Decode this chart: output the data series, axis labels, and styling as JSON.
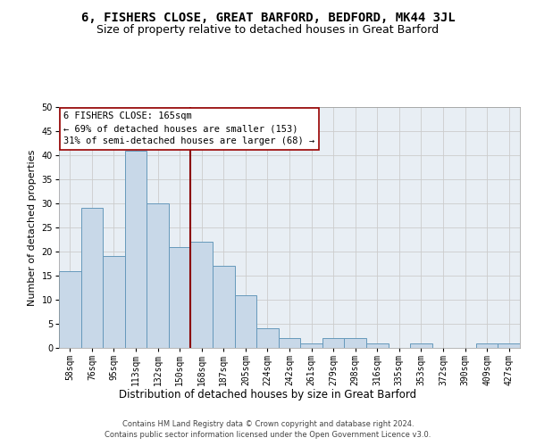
{
  "title": "6, FISHERS CLOSE, GREAT BARFORD, BEDFORD, MK44 3JL",
  "subtitle": "Size of property relative to detached houses in Great Barford",
  "xlabel": "Distribution of detached houses by size in Great Barford",
  "ylabel": "Number of detached properties",
  "footer_line1": "Contains HM Land Registry data © Crown copyright and database right 2024.",
  "footer_line2": "Contains public sector information licensed under the Open Government Licence v3.0.",
  "bar_labels": [
    "58sqm",
    "76sqm",
    "95sqm",
    "113sqm",
    "132sqm",
    "150sqm",
    "168sqm",
    "187sqm",
    "205sqm",
    "224sqm",
    "242sqm",
    "261sqm",
    "279sqm",
    "298sqm",
    "316sqm",
    "335sqm",
    "353sqm",
    "372sqm",
    "390sqm",
    "409sqm",
    "427sqm"
  ],
  "bar_values": [
    16,
    29,
    19,
    41,
    30,
    21,
    22,
    17,
    11,
    4,
    2,
    1,
    2,
    2,
    1,
    0,
    1,
    0,
    0,
    1,
    1
  ],
  "bar_color": "#c8d8e8",
  "bar_edge_color": "#6699bb",
  "ylim": [
    0,
    50
  ],
  "yticks": [
    0,
    5,
    10,
    15,
    20,
    25,
    30,
    35,
    40,
    45,
    50
  ],
  "property_line_x": 5.5,
  "annotation_line1": "6 FISHERS CLOSE: 165sqm",
  "annotation_line2": "← 69% of detached houses are smaller (153)",
  "annotation_line3": "31% of semi-detached houses are larger (68) →",
  "grid_color": "#cccccc",
  "background_color": "#e8eef4",
  "title_fontsize": 10,
  "subtitle_fontsize": 9,
  "ylabel_fontsize": 8,
  "xlabel_fontsize": 8.5,
  "tick_fontsize": 7,
  "footer_fontsize": 6,
  "annot_fontsize": 7.5
}
